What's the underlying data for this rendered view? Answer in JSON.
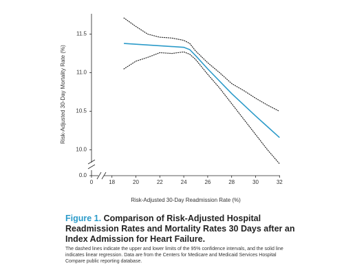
{
  "chart_data": {
    "type": "line",
    "y_label": "Risk-Adjusted 30-Day Mortality Rate (%)",
    "x_label": "Risk-Adjusted 30-Day Readmission Rate (%)",
    "figure_label": "Figure 1.",
    "caption_title": "Comparison of Risk-Adjusted Hospital Readmission Rates and Mortality Rates 30 Days after an Index Admission for Heart Failure.",
    "caption_note": "The dashed lines indicate the upper and lower limits of the 95% confidence intervals, and the solid line indicates linear regression. Data are from the Centers for Medicare and Medicaid Services Hospital Compare public reporting database.",
    "axis_break": true,
    "xlim": [
      17.5,
      32.5
    ],
    "ylim": [
      9.8,
      11.8
    ],
    "xticks": [
      0,
      18,
      20,
      22,
      24,
      26,
      28,
      30,
      32
    ],
    "yticks": [
      {
        "value": 0,
        "label": "0.0"
      },
      {
        "value": 10,
        "label": "10.0"
      },
      10.5,
      {
        "value": 11,
        "label": "11.0"
      },
      11.5
    ],
    "series": [
      {
        "color": "#2a9ac9",
        "style": "solid",
        "x": [
          19,
          23,
          24,
          24.5,
          25,
          26,
          28,
          30,
          32
        ],
        "y": [
          11.38,
          11.34,
          11.33,
          11.3,
          11.22,
          11.05,
          10.73,
          10.44,
          10.16
        ]
      },
      {
        "color": "#222222",
        "style": "dotted",
        "x": [
          19,
          20,
          21,
          22,
          23,
          24,
          24.5,
          25,
          26,
          27,
          28,
          29,
          30,
          31,
          32
        ],
        "y": [
          11.71,
          11.6,
          11.5,
          11.46,
          11.45,
          11.42,
          11.38,
          11.28,
          11.13,
          11.0,
          10.86,
          10.77,
          10.67,
          10.58,
          10.5
        ]
      },
      {
        "color": "#222222",
        "style": "dotted",
        "x": [
          19,
          20,
          21,
          22,
          23,
          24,
          24.5,
          25,
          26,
          27,
          28,
          29,
          30,
          31,
          32
        ],
        "y": [
          11.05,
          11.15,
          11.2,
          11.26,
          11.25,
          11.27,
          11.24,
          11.17,
          10.98,
          10.8,
          10.6,
          10.4,
          10.2,
          10.0,
          9.82
        ]
      }
    ]
  }
}
